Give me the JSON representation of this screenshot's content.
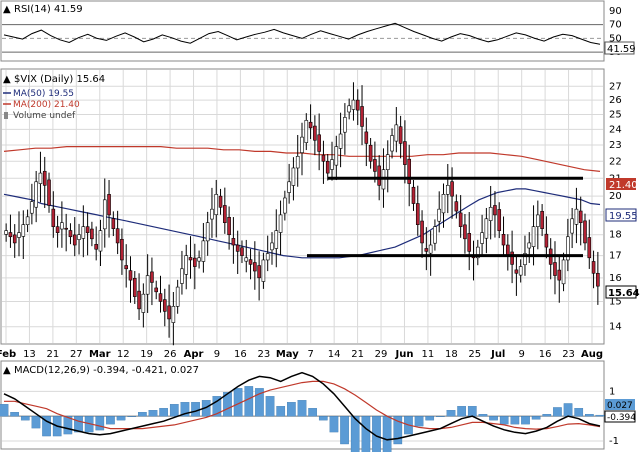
{
  "colors": {
    "up": "#ffffff",
    "down": "#b22234",
    "candle_outline": "#000000",
    "ma50": "#1f2d7a",
    "ma200": "#c0392b",
    "macd_line": "#000000",
    "macd_signal": "#c0392b",
    "macd_hist": "#5b9bd5",
    "rsi_line": "#000000",
    "grid": "#d9d9d9",
    "border": "#888888"
  },
  "rsi_panel": {
    "legend": "RSI(14) 41.59",
    "current_label": "41.59",
    "ticks": [
      "90",
      "70",
      "50",
      "30"
    ]
  },
  "price_panel": {
    "legend": {
      "symbol": "$VIX (Daily) 15.64",
      "ma50": "MA(50) 19.55",
      "ma200": "MA(200) 21.40",
      "volume": "Volume undef"
    },
    "y_ticks": [
      "27",
      "26",
      "25",
      "24",
      "23",
      "22",
      "21",
      "20",
      "19",
      "18",
      "17",
      "16",
      "15",
      "14"
    ],
    "value_labels": {
      "ma200": "21.40",
      "ma50": "19.55",
      "last": "15.64"
    }
  },
  "macd_panel": {
    "legend": "MACD(12,26,9) -0.394, -0.421, 0.027",
    "y_ticks": [
      "1",
      "0",
      "-1"
    ],
    "value_labels": {
      "hist": "0.027",
      "macd": "-0.394"
    }
  },
  "x_axis": {
    "labels": [
      "Feb",
      "13",
      "21",
      "27",
      "Mar",
      "12",
      "19",
      "26",
      "Apr",
      "9",
      "16",
      "23",
      "May",
      "7",
      "14",
      "21",
      "29",
      "Jun",
      "11",
      "18",
      "25",
      "Jul",
      "9",
      "16",
      "23",
      "Aug"
    ]
  },
  "chart_data": {
    "type": "candlestick",
    "title": "$VIX (Daily)",
    "ylim": [
      13.5,
      28
    ],
    "y_scale": "log",
    "x_labels": [
      "Feb",
      "13",
      "21",
      "27",
      "Mar",
      "12",
      "19",
      "26",
      "Apr",
      "9",
      "16",
      "23",
      "May",
      "7",
      "14",
      "21",
      "29",
      "Jun",
      "11",
      "18",
      "25",
      "Jul",
      "9",
      "16",
      "23",
      "Aug"
    ],
    "close": [
      18.2,
      17.9,
      17.6,
      18.1,
      18.5,
      18.9,
      19.7,
      20.8,
      21.3,
      20.6,
      19.5,
      18.4,
      18.1,
      18.6,
      18.3,
      17.9,
      17.5,
      18.0,
      18.4,
      18.1,
      17.8,
      17.3,
      18.2,
      19.8,
      19.0,
      18.3,
      17.6,
      16.8,
      16.4,
      15.9,
      15.2,
      14.7,
      15.3,
      16.1,
      15.8,
      15.4,
      15.0,
      14.6,
      14.3,
      14.8,
      15.6,
      16.4,
      17.0,
      16.8,
      16.5,
      16.9,
      17.7,
      18.6,
      19.3,
      20.1,
      19.4,
      18.6,
      18.0,
      17.5,
      17.2,
      17.0,
      16.9,
      16.6,
      16.3,
      16.0,
      16.8,
      17.1,
      17.6,
      18.2,
      19.0,
      19.9,
      20.8,
      21.6,
      22.3,
      23.5,
      24.6,
      24.1,
      23.3,
      22.6,
      22.0,
      21.3,
      22.1,
      22.9,
      23.7,
      24.8,
      25.6,
      26.0,
      25.3,
      24.2,
      23.1,
      22.0,
      21.4,
      20.6,
      21.5,
      22.4,
      23.6,
      24.3,
      23.1,
      21.8,
      20.7,
      19.6,
      18.5,
      17.6,
      17.2,
      17.5,
      18.4,
      19.3,
      20.1,
      20.6,
      20.0,
      19.2,
      18.4,
      17.8,
      17.2,
      16.9,
      17.4,
      18.1,
      18.8,
      19.4,
      19.0,
      18.2,
      17.5,
      17.0,
      16.6,
      16.2,
      16.5,
      17.1,
      17.6,
      18.4,
      19.0,
      18.3,
      17.4,
      16.6,
      16.1,
      15.9,
      16.8,
      17.9,
      18.8,
      19.3,
      18.6,
      17.6,
      16.9,
      16.2,
      15.64
    ],
    "ma50": [
      20.1,
      20.0,
      19.9,
      19.8,
      19.6,
      19.5,
      19.4,
      19.3,
      19.2,
      19.1,
      19.0,
      18.9,
      18.8,
      18.7,
      18.6,
      18.5,
      18.4,
      18.3,
      18.2,
      18.1,
      18.0,
      17.9,
      17.8,
      17.7,
      17.6,
      17.5,
      17.4,
      17.3,
      17.2,
      17.1,
      17.0,
      16.95,
      16.9,
      16.9,
      16.9,
      16.9,
      16.9,
      16.95,
      17.0,
      17.1,
      17.2,
      17.3,
      17.4,
      17.6,
      17.8,
      18.0,
      18.3,
      18.6,
      18.9,
      19.2,
      19.5,
      19.8,
      20.0,
      20.2,
      20.3,
      20.4,
      20.4,
      20.3,
      20.2,
      20.1,
      20.0,
      19.9,
      19.8,
      19.6,
      19.55
    ],
    "ma200": [
      22.6,
      22.7,
      22.8,
      22.8,
      22.9,
      22.9,
      22.9,
      22.9,
      22.9,
      22.9,
      22.9,
      22.8,
      22.8,
      22.8,
      22.7,
      22.7,
      22.6,
      22.6,
      22.5,
      22.5,
      22.4,
      22.4,
      22.3,
      22.3,
      22.3,
      22.3,
      22.3,
      22.4,
      22.4,
      22.5,
      22.5,
      22.5,
      22.4,
      22.3,
      22.1,
      21.9,
      21.7,
      21.5,
      21.4
    ],
    "rsi": [
      55,
      52,
      49,
      57,
      62,
      54,
      48,
      44,
      51,
      56,
      50,
      47,
      53,
      58,
      52,
      45,
      49,
      55,
      51,
      46,
      43,
      50,
      57,
      60,
      54,
      48,
      52,
      56,
      59,
      63,
      58,
      54,
      50,
      56,
      61,
      57,
      53,
      49,
      55,
      60,
      64,
      68,
      72,
      66,
      60,
      55,
      50,
      46,
      52,
      57,
      54,
      49,
      45,
      48,
      53,
      58,
      55,
      50,
      46,
      52,
      56,
      54,
      49,
      44,
      41.59
    ],
    "rsi_lines": [
      70,
      50,
      30
    ],
    "macd": [
      0.9,
      0.7,
      0.4,
      0.1,
      -0.2,
      -0.4,
      -0.5,
      -0.6,
      -0.7,
      -0.75,
      -0.7,
      -0.6,
      -0.5,
      -0.4,
      -0.3,
      -0.2,
      -0.05,
      0.1,
      0.2,
      0.35,
      0.6,
      0.9,
      1.2,
      1.45,
      1.6,
      1.55,
      1.4,
      1.6,
      1.75,
      1.6,
      1.3,
      0.9,
      0.4,
      -0.1,
      -0.5,
      -0.8,
      -0.95,
      -0.9,
      -0.8,
      -0.7,
      -0.6,
      -0.5,
      -0.3,
      -0.1,
      0.0,
      -0.2,
      -0.4,
      -0.55,
      -0.65,
      -0.7,
      -0.6,
      -0.45,
      -0.2,
      0.0,
      -0.1,
      -0.3,
      -0.394
    ],
    "macd_signal": [
      0.6,
      0.6,
      0.5,
      0.4,
      0.3,
      0.1,
      -0.05,
      -0.2,
      -0.3,
      -0.4,
      -0.5,
      -0.5,
      -0.5,
      -0.5,
      -0.45,
      -0.4,
      -0.35,
      -0.25,
      -0.15,
      -0.05,
      0.1,
      0.3,
      0.5,
      0.7,
      0.9,
      1.05,
      1.15,
      1.25,
      1.35,
      1.4,
      1.4,
      1.3,
      1.1,
      0.85,
      0.55,
      0.25,
      0.0,
      -0.2,
      -0.35,
      -0.45,
      -0.5,
      -0.5,
      -0.45,
      -0.35,
      -0.25,
      -0.25,
      -0.3,
      -0.35,
      -0.45,
      -0.5,
      -0.52,
      -0.5,
      -0.42,
      -0.32,
      -0.3,
      -0.35,
      -0.421
    ],
    "support_resistance": [
      21.0,
      17.0
    ]
  }
}
